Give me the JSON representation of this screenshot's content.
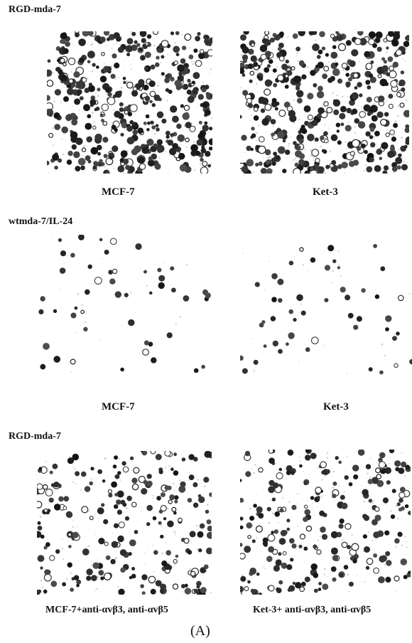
{
  "figure": {
    "panel_label": "(A)",
    "rows": [
      {
        "treatment": "RGD-mda-7",
        "left_caption": "MCF-7",
        "right_caption": "Ket-3",
        "density": "high"
      },
      {
        "treatment": "wtmda-7/IL-24",
        "left_caption": "MCF-7",
        "right_caption": "Ket-3",
        "density": "sparse"
      },
      {
        "treatment": "RGD-mda-7",
        "left_caption": "MCF-7+anti-αvβ3, anti-αvβ5",
        "right_caption": "Ket-3+ anti-αvβ3, anti-αvβ5",
        "density": "medium"
      }
    ]
  }
}
